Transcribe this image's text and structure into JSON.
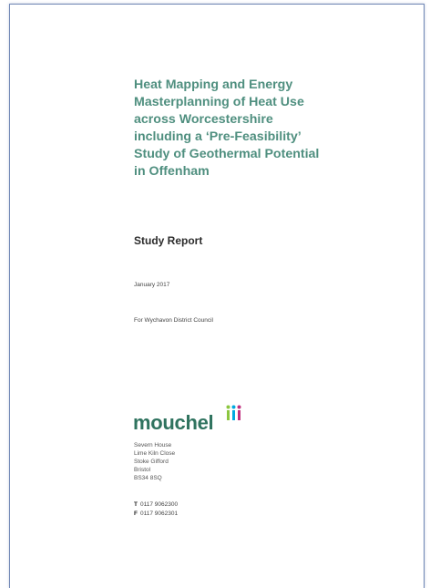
{
  "title_lines": [
    "Heat Mapping and Energy",
    "Masterplanning of Heat Use",
    "across Worcestershire",
    "including a ‘Pre-Feasibility’",
    "Study of Geothermal Potential",
    "in Offenham"
  ],
  "report_type": "Study Report",
  "date": "January 2017",
  "client": "For Wychavon District Council",
  "company": {
    "name": "mouchel",
    "address": [
      "Severn House",
      "Lime Kiln Close",
      "Stoke Gifford",
      "Bristol",
      "BS34 8SQ"
    ],
    "contacts": [
      {
        "label": "T",
        "number": "0117 9062300"
      },
      {
        "label": "F",
        "number": "0117 9062301"
      }
    ]
  }
}
